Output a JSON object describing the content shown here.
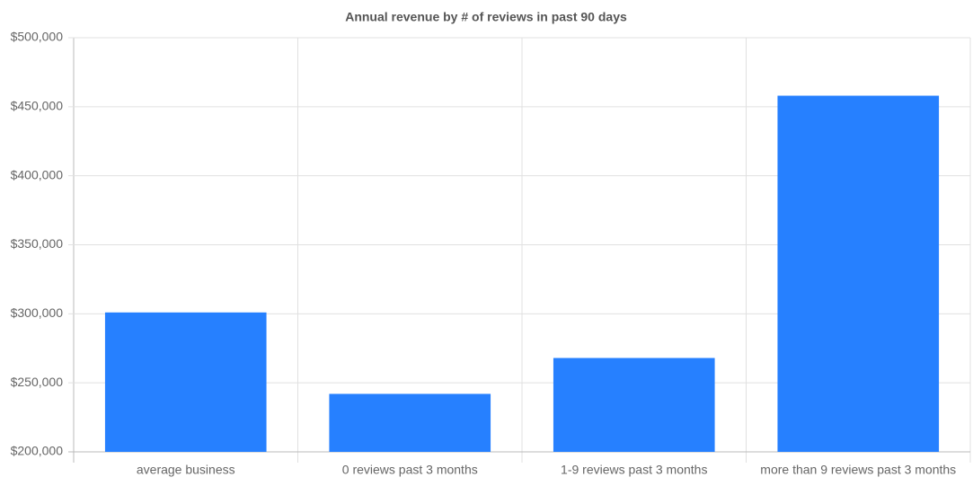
{
  "chart_data": {
    "type": "bar",
    "title": "Annual revenue by # of reviews in past 90 days",
    "categories": [
      "average business",
      "0 reviews past 3 months",
      "1-9 reviews past 3 months",
      "more than 9 reviews past 3 months"
    ],
    "values": [
      301000,
      242000,
      268000,
      458000
    ],
    "color": "#2680ff",
    "ylim": [
      200000,
      500000
    ],
    "yticks": [
      {
        "value": 200000,
        "label": "$200,000"
      },
      {
        "value": 250000,
        "label": "$250,000"
      },
      {
        "value": 300000,
        "label": "$300,000"
      },
      {
        "value": 350000,
        "label": "$350,000"
      },
      {
        "value": 400000,
        "label": "$400,000"
      },
      {
        "value": 450000,
        "label": "$450,000"
      },
      {
        "value": 500000,
        "label": "$500,000"
      }
    ],
    "grid": true
  }
}
